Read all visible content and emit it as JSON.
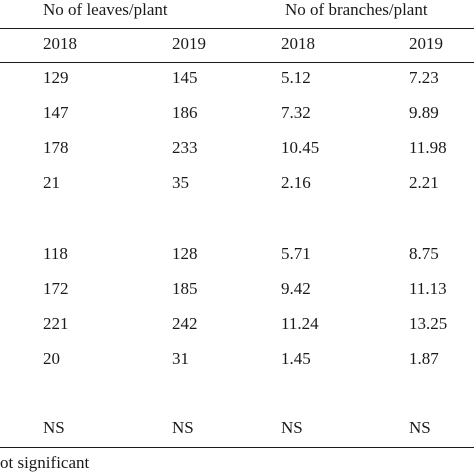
{
  "table": {
    "group_headers": [
      "No of leaves/plant",
      "No of branches/plant"
    ],
    "year_headers": [
      "2018",
      "2019",
      "2018",
      "2019"
    ],
    "rows": [
      [
        "129",
        "145",
        "5.12",
        "7.23"
      ],
      [
        "147",
        "186",
        "7.32",
        "9.89"
      ],
      [
        "178",
        "233",
        "10.45",
        "11.98"
      ],
      [
        "21",
        "35",
        "2.16",
        "2.21"
      ],
      [
        "118",
        "128",
        "5.71",
        "8.75"
      ],
      [
        "172",
        "185",
        "9.42",
        "11.13"
      ],
      [
        "221",
        "242",
        "11.24",
        "13.25"
      ],
      [
        "20",
        "31",
        "1.45",
        "1.87"
      ],
      [
        "NS",
        "NS",
        "NS",
        "NS"
      ]
    ]
  },
  "footnote": "ot significant"
}
